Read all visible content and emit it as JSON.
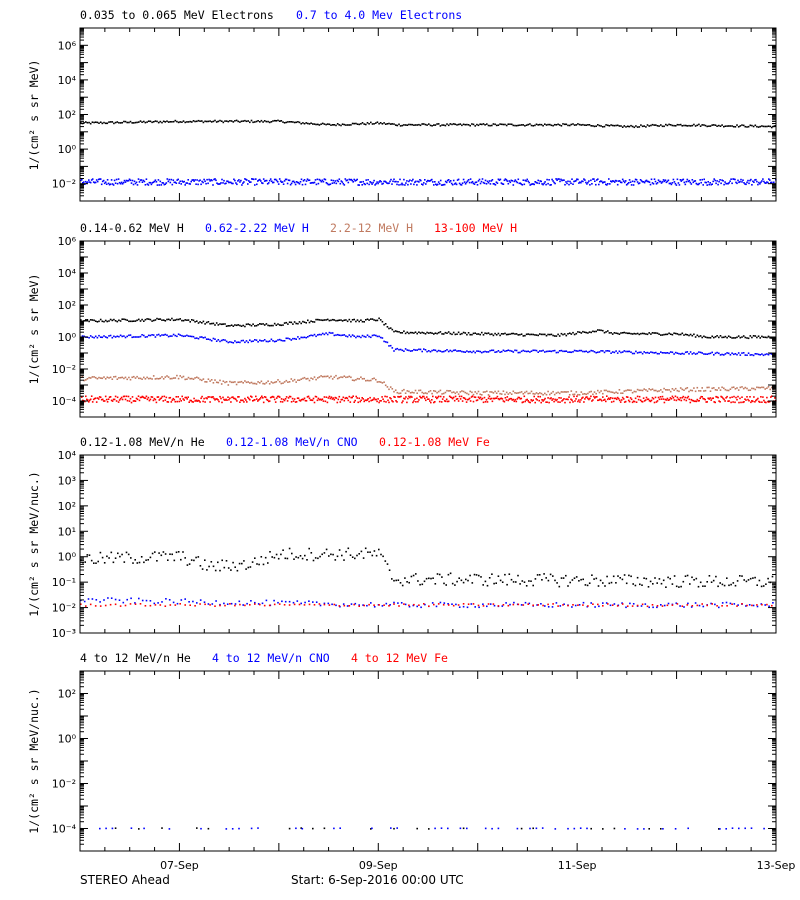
{
  "footer": {
    "spacecraft": "STEREO Ahead",
    "start": "Start:  6-Sep-2016 00:00 UTC"
  },
  "x_axis": {
    "range_days": [
      6.0,
      13.0
    ],
    "tick_labels": [
      {
        "day": 7,
        "label": "07-Sep"
      },
      {
        "day": 9,
        "label": "09-Sep"
      },
      {
        "day": 11,
        "label": "11-Sep"
      },
      {
        "day": 13,
        "label": "13-Sep"
      }
    ]
  },
  "chart_data": [
    {
      "type": "scatter",
      "ylabel": "1/(cm² s sr MeV)",
      "ylog": true,
      "ylim_log10": [
        -3,
        7
      ],
      "yticks": [
        {
          "exp": -2,
          "label": "10⁻²"
        },
        {
          "exp": 0,
          "label": "10⁰"
        },
        {
          "exp": 2,
          "label": "10²"
        },
        {
          "exp": 4,
          "label": "10⁴"
        },
        {
          "exp": 6,
          "label": "10⁶"
        }
      ],
      "series": [
        {
          "name": "0.035 to 0.065 MeV Electrons",
          "color": "#000000",
          "log10_flux": [
            [
              6.0,
              1.5
            ],
            [
              7.0,
              1.6
            ],
            [
              8.0,
              1.6
            ],
            [
              8.5,
              1.4
            ],
            [
              9.0,
              1.5
            ],
            [
              9.2,
              1.4
            ],
            [
              10.0,
              1.4
            ],
            [
              11.0,
              1.4
            ],
            [
              11.5,
              1.3
            ],
            [
              12.0,
              1.4
            ],
            [
              13.0,
              1.3
            ]
          ]
        },
        {
          "name": "0.7 to 4.0 Mev Electrons",
          "color": "#0000ff",
          "log10_flux": [
            [
              6.0,
              -1.9
            ],
            [
              13.0,
              -1.9
            ]
          ]
        }
      ]
    },
    {
      "type": "scatter",
      "ylabel": "1/(cm² s sr MeV)",
      "ylog": true,
      "ylim_log10": [
        -5,
        6
      ],
      "yticks": [
        {
          "exp": -4,
          "label": "10⁻⁴"
        },
        {
          "exp": -2,
          "label": "10⁻²"
        },
        {
          "exp": 0,
          "label": "10⁰"
        },
        {
          "exp": 2,
          "label": "10²"
        },
        {
          "exp": 4,
          "label": "10⁴"
        },
        {
          "exp": 6,
          "label": "10⁶"
        }
      ],
      "series": [
        {
          "name": "0.14-0.62 MeV H",
          "color": "#000000",
          "log10_flux": [
            [
              6.0,
              1.0
            ],
            [
              7.0,
              1.1
            ],
            [
              7.5,
              0.7
            ],
            [
              8.0,
              0.8
            ],
            [
              8.5,
              1.1
            ],
            [
              8.8,
              1.0
            ],
            [
              9.0,
              1.1
            ],
            [
              9.15,
              0.3
            ],
            [
              10.0,
              0.2
            ],
            [
              10.8,
              0.1
            ],
            [
              11.2,
              0.4
            ],
            [
              11.4,
              0.2
            ],
            [
              12.0,
              0.2
            ],
            [
              12.3,
              0.0
            ],
            [
              13.0,
              0.0
            ]
          ]
        },
        {
          "name": "0.62-2.22 MeV H",
          "color": "#0000ff",
          "log10_flux": [
            [
              6.0,
              0.0
            ],
            [
              7.0,
              0.1
            ],
            [
              7.5,
              -0.3
            ],
            [
              8.0,
              -0.2
            ],
            [
              8.5,
              0.2
            ],
            [
              8.8,
              0.0
            ],
            [
              9.0,
              0.1
            ],
            [
              9.15,
              -0.8
            ],
            [
              10.0,
              -0.9
            ],
            [
              11.0,
              -0.9
            ],
            [
              12.0,
              -1.0
            ],
            [
              13.0,
              -1.1
            ]
          ]
        },
        {
          "name": "2.2-12 MeV H",
          "color": "#c07a60",
          "log10_flux": [
            [
              6.0,
              -2.6
            ],
            [
              7.0,
              -2.5
            ],
            [
              7.5,
              -2.9
            ],
            [
              8.0,
              -2.8
            ],
            [
              8.5,
              -2.5
            ],
            [
              9.0,
              -2.7
            ],
            [
              9.15,
              -3.4
            ],
            [
              10.0,
              -3.5
            ],
            [
              11.0,
              -3.5
            ],
            [
              12.0,
              -3.3
            ],
            [
              13.0,
              -3.2
            ]
          ]
        },
        {
          "name": "13-100 MeV H",
          "color": "#ff0000",
          "log10_flux": [
            [
              6.0,
              -3.9
            ],
            [
              13.0,
              -3.9
            ]
          ]
        }
      ]
    },
    {
      "type": "scatter",
      "ylabel": "1/(cm² s sr MeV/nuc.)",
      "ylog": true,
      "ylim_log10": [
        -3,
        4
      ],
      "yticks": [
        {
          "exp": -3,
          "label": "10⁻³"
        },
        {
          "exp": -2,
          "label": "10⁻²"
        },
        {
          "exp": -1,
          "label": "10⁻¹"
        },
        {
          "exp": 0,
          "label": "10⁰"
        },
        {
          "exp": 1,
          "label": "10¹"
        },
        {
          "exp": 2,
          "label": "10²"
        },
        {
          "exp": 3,
          "label": "10³"
        },
        {
          "exp": 4,
          "label": "10⁴"
        }
      ],
      "series": [
        {
          "name": "0.12-1.08 MeV/n He",
          "color": "#000000",
          "log10_flux": [
            [
              6.0,
              -0.1
            ],
            [
              7.0,
              0.0
            ],
            [
              7.3,
              -0.4
            ],
            [
              7.7,
              -0.3
            ],
            [
              8.0,
              0.1
            ],
            [
              8.5,
              0.1
            ],
            [
              9.0,
              0.1
            ],
            [
              9.15,
              -0.9
            ],
            [
              10.0,
              -0.9
            ],
            [
              13.0,
              -1.0
            ]
          ]
        },
        {
          "name": "0.12-1.08 MeV/n CNO",
          "color": "#0000ff",
          "log10_flux": [
            [
              6.0,
              -1.7
            ],
            [
              9.15,
              -1.9
            ],
            [
              13.0,
              -1.9
            ]
          ]
        },
        {
          "name": "0.12-1.08 MeV Fe",
          "color": "#ff0000",
          "log10_flux": [
            [
              6.0,
              -1.9
            ],
            [
              13.0,
              -1.9
            ]
          ]
        }
      ]
    },
    {
      "type": "scatter",
      "ylabel": "1/(cm² s sr MeV/nuc.)",
      "ylog": true,
      "ylim_log10": [
        -5,
        3
      ],
      "yticks": [
        {
          "exp": -4,
          "label": "10⁻⁴"
        },
        {
          "exp": -2,
          "label": "10⁻²"
        },
        {
          "exp": 0,
          "label": "10⁰"
        },
        {
          "exp": 2,
          "label": "10²"
        }
      ],
      "series": [
        {
          "name": "4 to 12 MeV/n He",
          "color": "#000000",
          "log10_flux": [
            [
              6.0,
              -4.0
            ],
            [
              13.0,
              -4.0
            ]
          ]
        },
        {
          "name": "4 to 12 MeV/n CNO",
          "color": "#0000ff",
          "log10_flux": [
            [
              6.0,
              -4.0
            ],
            [
              13.0,
              -4.0
            ]
          ]
        },
        {
          "name": "4 to 12 MeV Fe",
          "color": "#ff0000",
          "log10_flux": []
        }
      ]
    }
  ]
}
